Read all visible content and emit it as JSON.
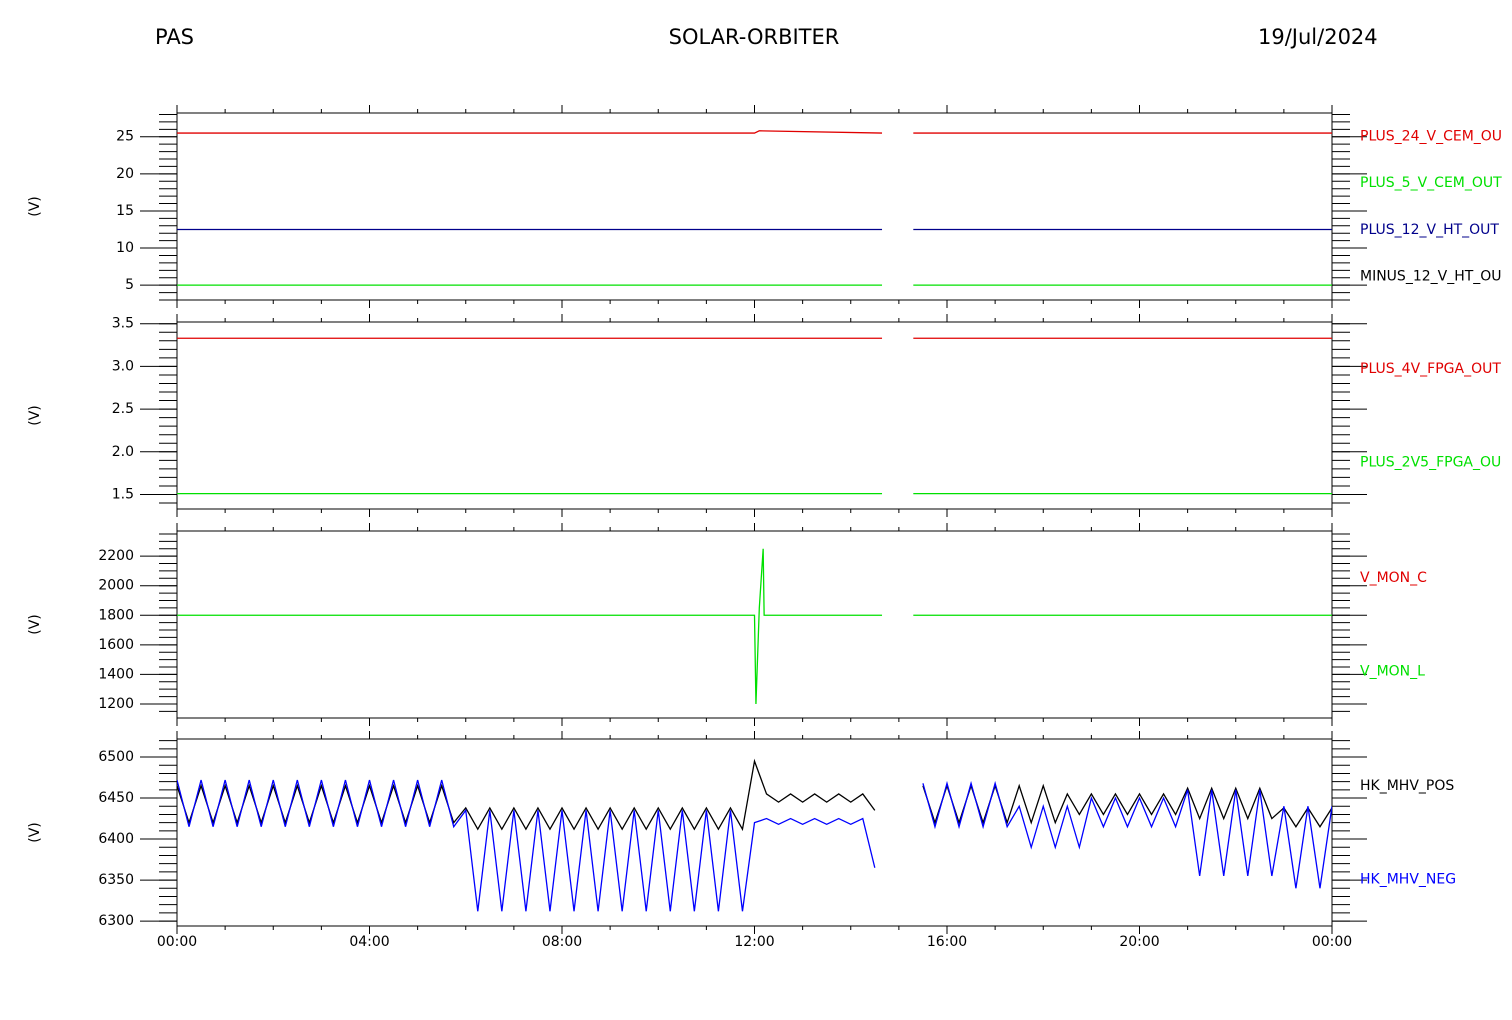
{
  "header": {
    "left": "PAS",
    "title": "SOLAR-ORBITER",
    "date": "19/Jul/2024"
  },
  "chart_data": [
    {
      "type": "line",
      "ylabel": "(V)",
      "xlim": [
        0,
        24
      ],
      "ylim": [
        3,
        28.2
      ],
      "yticks": [
        5,
        10,
        15,
        20,
        25
      ],
      "x": [
        0,
        12.0,
        12.1,
        14.65,
        14.9,
        15.3,
        24
      ],
      "series": [
        {
          "name": "PLUS_24_V_CEM_OU",
          "color": "#e00000",
          "values": [
            25.5,
            25.5,
            25.8,
            25.5,
            null,
            25.5,
            25.5
          ]
        },
        {
          "name": "PLUS_5_V_CEM_OUT",
          "color": "#00e000",
          "values": [
            5.0,
            5.0,
            5.0,
            5.0,
            null,
            5.0,
            5.0
          ]
        },
        {
          "name": "PLUS_12_V_HT_OUT",
          "color": "#00008b",
          "values": [
            12.5,
            12.5,
            12.5,
            12.5,
            null,
            12.5,
            12.5
          ]
        },
        {
          "name": "MINUS_12_V_HT_OU",
          "color": "#000000",
          "values": [
            null,
            null,
            null,
            null,
            null,
            null,
            null
          ]
        }
      ]
    },
    {
      "type": "line",
      "ylabel": "(V)",
      "xlim": [
        0,
        24
      ],
      "ylim": [
        1.33,
        3.52
      ],
      "yticks": [
        1.5,
        {
          "value": 2,
          "label": "2.0"
        },
        2.5,
        {
          "value": 3,
          "label": "3.0"
        },
        3.5
      ],
      "x": [
        0,
        14.65,
        14.9,
        15.3,
        24
      ],
      "series": [
        {
          "name": "PLUS_4V_FPGA_OUT",
          "color": "#e00000",
          "values": [
            3.33,
            3.33,
            null,
            3.33,
            3.33
          ]
        },
        {
          "name": "PLUS_2V5_FPGA_OU",
          "color": "#00e000",
          "values": [
            1.51,
            1.51,
            null,
            1.51,
            1.51
          ]
        }
      ]
    },
    {
      "type": "line",
      "ylabel": "(V)",
      "xlim": [
        0,
        24
      ],
      "ylim": [
        1105,
        2370
      ],
      "yticks": [
        1200,
        1400,
        1600,
        1800,
        2000,
        2200
      ],
      "x": [
        0,
        12.0,
        12.03,
        12.1,
        12.18,
        12.2,
        14.65,
        14.9,
        15.3,
        24
      ],
      "series": [
        {
          "name": "V_MON_C",
          "color": "#e00000",
          "values": [
            null,
            null,
            null,
            null,
            null,
            null,
            null,
            null,
            null,
            null
          ]
        },
        {
          "name": "V_MON_L",
          "color": "#00e000",
          "values": [
            1800,
            1800,
            1200,
            1850,
            2250,
            1800,
            1800,
            null,
            1800,
            1800
          ]
        }
      ]
    },
    {
      "type": "line",
      "ylabel": "(V)",
      "xlim": [
        0,
        24
      ],
      "ylim": [
        6294,
        6522
      ],
      "yticks": [
        6300,
        6350,
        6400,
        6450,
        6500
      ],
      "xticks": [
        {
          "value": 0,
          "label": "00:00"
        },
        {
          "value": 4,
          "label": "04:00"
        },
        {
          "value": 8,
          "label": "08:00"
        },
        {
          "value": 12,
          "label": "12:00"
        },
        {
          "value": 16,
          "label": "16:00"
        },
        {
          "value": 20,
          "label": "20:00"
        },
        {
          "value": 24,
          "label": "00:00"
        }
      ],
      "x": [
        0,
        0.25,
        0.5,
        0.75,
        1,
        1.25,
        1.5,
        1.75,
        2,
        2.25,
        2.5,
        2.75,
        3,
        3.25,
        3.5,
        3.75,
        4,
        4.25,
        4.5,
        4.75,
        5,
        5.25,
        5.5,
        5.75,
        6,
        6.25,
        6.5,
        6.75,
        7,
        7.25,
        7.5,
        7.75,
        8,
        8.25,
        8.5,
        8.75,
        9,
        9.25,
        9.5,
        9.75,
        10,
        10.25,
        10.5,
        10.75,
        11,
        11.25,
        11.5,
        11.75,
        12,
        12.25,
        12.5,
        12.75,
        13,
        13.25,
        13.5,
        13.75,
        14,
        14.25,
        14.5,
        14.75,
        15,
        15.25,
        15.5,
        15.75,
        16,
        16.25,
        16.5,
        16.75,
        17,
        17.25,
        17.5,
        17.75,
        18,
        18.25,
        18.5,
        18.75,
        19,
        19.25,
        19.5,
        19.75,
        20,
        20.25,
        20.5,
        20.75,
        21,
        21.25,
        21.5,
        21.75,
        22,
        22.25,
        22.5,
        22.75,
        23,
        23.25,
        23.5,
        23.75,
        24
      ],
      "series": [
        {
          "name": "HK_MHV_POS",
          "color": "#000000",
          "values": [
            6465,
            6420,
            6465,
            6420,
            6465,
            6420,
            6465,
            6420,
            6465,
            6420,
            6465,
            6420,
            6465,
            6420,
            6465,
            6420,
            6465,
            6420,
            6465,
            6420,
            6465,
            6420,
            6465,
            6420,
            6438,
            6412,
            6438,
            6412,
            6438,
            6412,
            6438,
            6412,
            6438,
            6412,
            6438,
            6412,
            6438,
            6412,
            6438,
            6412,
            6438,
            6412,
            6438,
            6412,
            6438,
            6412,
            6438,
            6412,
            6495,
            6455,
            6445,
            6455,
            6445,
            6455,
            6445,
            6455,
            6445,
            6455,
            6435,
            null,
            null,
            null,
            6465,
            6420,
            6465,
            6420,
            6465,
            6420,
            6465,
            6420,
            6465,
            6420,
            6465,
            6420,
            6455,
            6430,
            6455,
            6430,
            6455,
            6430,
            6455,
            6430,
            6455,
            6430,
            6462,
            6425,
            6462,
            6425,
            6462,
            6425,
            6462,
            6425,
            6438,
            6415,
            6438,
            6415,
            6438
          ]
        },
        {
          "name": "HK_MHV_NEG",
          "color": "#0000ff",
          "values": [
            6472,
            6415,
            6472,
            6415,
            6472,
            6415,
            6472,
            6415,
            6472,
            6415,
            6472,
            6415,
            6472,
            6415,
            6472,
            6415,
            6472,
            6415,
            6472,
            6415,
            6472,
            6415,
            6472,
            6415,
            6435,
            6312,
            6435,
            6312,
            6435,
            6312,
            6435,
            6312,
            6435,
            6312,
            6435,
            6312,
            6435,
            6312,
            6435,
            6312,
            6435,
            6312,
            6435,
            6312,
            6435,
            6312,
            6435,
            6312,
            6420,
            6425,
            6418,
            6425,
            6418,
            6425,
            6418,
            6425,
            6418,
            6425,
            6365,
            null,
            null,
            null,
            6468,
            6415,
            6468,
            6415,
            6468,
            6415,
            6468,
            6415,
            6440,
            6390,
            6440,
            6390,
            6440,
            6390,
            6450,
            6415,
            6450,
            6415,
            6450,
            6415,
            6450,
            6415,
            6460,
            6355,
            6460,
            6355,
            6460,
            6355,
            6460,
            6355,
            6440,
            6340,
            6440,
            6340,
            6440
          ]
        }
      ]
    }
  ]
}
